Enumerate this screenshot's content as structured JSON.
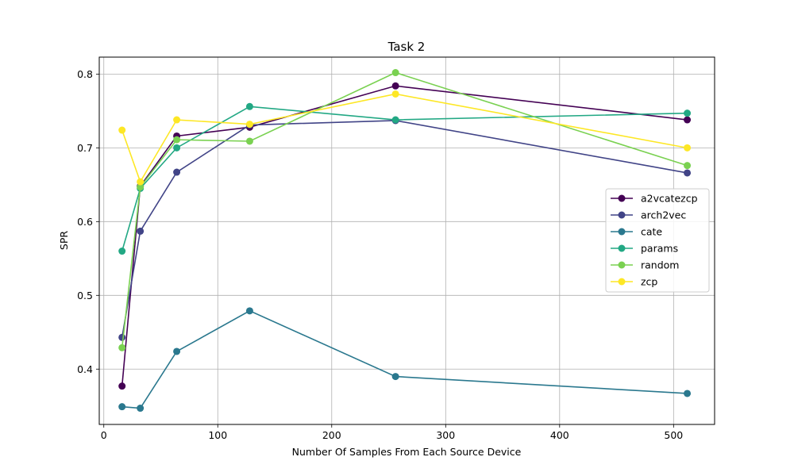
{
  "chart_data": {
    "type": "line",
    "title": "Task 2",
    "xlabel": "Number Of Samples From Each Source Device",
    "ylabel": "SPR",
    "x": [
      16,
      32,
      64,
      128,
      256,
      512
    ],
    "xlim": [
      -4,
      536
    ],
    "ylim": [
      0.325,
      0.823
    ],
    "x_ticks": [
      0,
      100,
      200,
      300,
      400,
      500
    ],
    "y_ticks": [
      0.4,
      0.5,
      0.6,
      0.7,
      0.8
    ],
    "x_tick_labels": [
      "0",
      "100",
      "200",
      "300",
      "400",
      "500"
    ],
    "y_tick_labels": [
      "0.4",
      "0.5",
      "0.6",
      "0.7",
      "0.8"
    ],
    "grid": true,
    "legend_position": "center-right",
    "series": [
      {
        "name": "a2vcatezcp",
        "color": "#440154",
        "values": [
          0.377,
          0.648,
          0.716,
          0.728,
          0.784,
          0.738
        ]
      },
      {
        "name": "arch2vec",
        "color": "#414487",
        "values": [
          0.443,
          0.587,
          0.667,
          0.731,
          0.737,
          0.666
        ]
      },
      {
        "name": "cate",
        "color": "#2a788e",
        "values": [
          0.349,
          0.347,
          0.424,
          0.479,
          0.39,
          0.367
        ]
      },
      {
        "name": "params",
        "color": "#22a884",
        "values": [
          0.56,
          0.645,
          0.7,
          0.756,
          0.738,
          0.747
        ]
      },
      {
        "name": "random",
        "color": "#7ad151",
        "values": [
          0.429,
          0.647,
          0.711,
          0.709,
          0.802,
          0.676
        ]
      },
      {
        "name": "zcp",
        "color": "#fde725",
        "values": [
          0.724,
          0.654,
          0.738,
          0.732,
          0.773,
          0.7
        ]
      }
    ]
  }
}
